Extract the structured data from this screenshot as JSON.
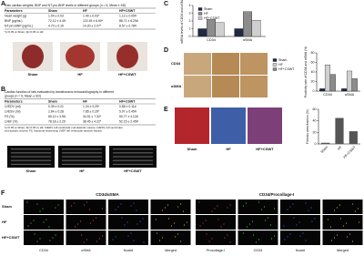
{
  "panels": {
    "A": {
      "label": "A",
      "table": {
        "title_lines": [
          "Rats cardiac weights, BNP and NT-pro-BNP levels in different groups (n = 6, Mean ± SD)"
        ],
        "header": [
          "Parameters",
          "Sham",
          "HF",
          "HF+CSWT"
        ],
        "rows": [
          [
            "Heart weight (g)",
            "1.04 ± 0.03",
            "1.40 ± 0.03*",
            "1.12 ± 0.05#"
          ],
          [
            "BNP (pg/mL)",
            "72.12 ± 4.45",
            "122.45 ± 6.60*",
            "88.71 ± 6.29#"
          ],
          [
            "NT-pro-BNP (pg/mL)",
            "4.70 ± 0.19",
            "14.20 ± 2.07*",
            "8.57 ± 0.78#"
          ]
        ],
        "note_lines": [
          "*p<0.05 vs Sham; #p<0.05 vs HF"
        ]
      },
      "image_labels": [
        "Sham",
        "HF",
        "HF+CSWT"
      ]
    },
    "B": {
      "label": "B",
      "table": {
        "title_lines": [
          "Cardiac function of rats evaluated by transthoracic echocardiography in different",
          "groups (n = 6, Mean ± SD)"
        ],
        "header": [
          "Parameters",
          "Sham",
          "HF",
          "HF+CSWT"
        ],
        "rows": [
          [
            "LVEDV (ml)",
            "0.39 ± 0.21",
            "1.24 ± 0.29*",
            "0.85 ± 0.11#"
          ],
          [
            "LVESV (ml)",
            "2.84 ± 0.28",
            "7.85 ± 0.29*",
            "5.97 ± 0.45#"
          ],
          [
            "FS (%)",
            "65.12 ± 3.56",
            "34.91 ± 7.32*",
            "50.77 ± 4.12#"
          ],
          [
            "LVEF (%)",
            "78.18 ± 2.29",
            "38.45 ± 4.22*",
            "52.15 ± 2.45#"
          ]
        ],
        "note_lines": [
          "*p<0.05 vs Sham; #p<0.05 vs HF. LVEDV, left ventricular end-diastolic volume; LVESV, left ventricular",
          "end-systolic volume; FS, fractional shortening; LVEF, left ventricular ejection fraction"
        ]
      },
      "image_labels": [
        "Sham",
        "HF",
        "HF+CSWT"
      ]
    },
    "C": {
      "label": "C",
      "chart": {
        "type": "bar",
        "ylabel": "mRNA levels of CD34 and αSMA",
        "categories": [
          "CD34",
          "αSMA"
        ],
        "series": [
          {
            "name": "Sham",
            "color": "#1f2a44",
            "values": [
              1.0,
              1.0
            ]
          },
          {
            "name": "HF",
            "color": "#8c8c8c",
            "values": [
              2.2,
              3.2
            ]
          },
          {
            "name": "HF+CSWT",
            "color": "#cfcfcf",
            "values": [
              1.8,
              2.1
            ]
          }
        ],
        "ylim": [
          0,
          4
        ],
        "yticks": [
          0,
          1,
          2,
          3,
          4
        ]
      }
    },
    "D": {
      "label": "D",
      "row_labels": [
        "CD34",
        "αSMA"
      ],
      "chart": {
        "type": "bar",
        "ylabel": "Positivity rate of CD34 and αSMA (%)",
        "categories": [
          "CD34",
          "αSMA"
        ],
        "series": [
          {
            "name": "Sham",
            "color": "#1f2a44",
            "values": [
              5,
              5
            ]
          },
          {
            "name": "HF",
            "color": "#d0d0d0",
            "values": [
              55,
              42
            ]
          },
          {
            "name": "HF+CSWT",
            "color": "#8c8c8c",
            "values": [
              35,
              26
            ]
          }
        ],
        "ylim": [
          0,
          80
        ],
        "yticks": [
          0,
          20,
          40,
          60,
          80
        ]
      }
    },
    "E": {
      "label": "E",
      "image_labels": [
        "Sham",
        "HF",
        "HF+CSWT"
      ],
      "chart": {
        "type": "bar",
        "ylabel": "Fibrosis area fraction (%)",
        "categories": [
          "Sham",
          "HF",
          "HF+CSWT"
        ],
        "values": [
          2,
          45,
          22
        ],
        "color": "#555555",
        "ylim": [
          0,
          60
        ],
        "yticks": [
          0,
          20,
          40,
          60
        ]
      }
    },
    "F": {
      "label": "F",
      "group_titles": [
        "CD34/αSMA",
        "CD34/Procollage-I"
      ],
      "row_labels": [
        "Sham",
        "HF",
        "HF+CSWT"
      ],
      "column_labels": [
        "CD34",
        "αSMA",
        "Nuclei",
        "Merged",
        "Procollage-I",
        "CD34",
        "Nuclei",
        "Merged"
      ]
    }
  }
}
